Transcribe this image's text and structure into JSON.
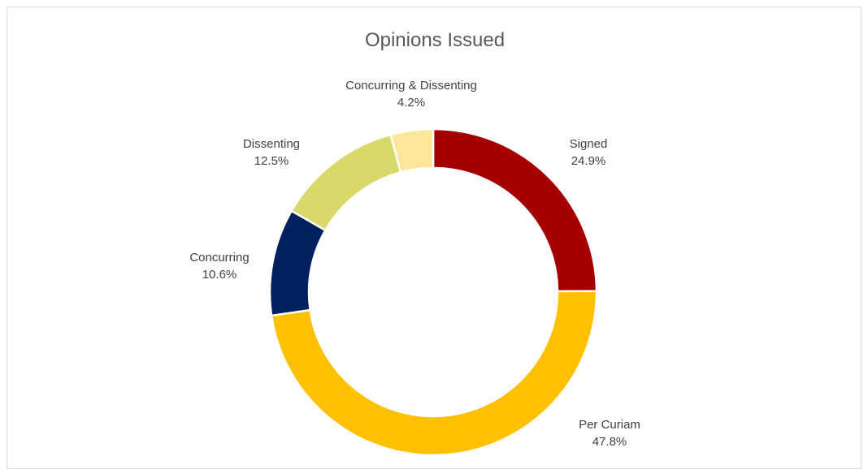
{
  "chart_data": {
    "type": "pie",
    "subtype": "donut",
    "title": "Opinions Issued",
    "slices": [
      {
        "label": "Signed",
        "value": 24.9,
        "value_label": "24.9%",
        "color": "#A50000"
      },
      {
        "label": "Per Curiam",
        "value": 47.8,
        "value_label": "47.8%",
        "color": "#FFC000"
      },
      {
        "label": "Concurring",
        "value": 10.6,
        "value_label": "10.6%",
        "color": "#002060"
      },
      {
        "label": "Dissenting",
        "value": 12.5,
        "value_label": "12.5%",
        "color": "#D9D96B"
      },
      {
        "label": "Concurring & Dissenting",
        "value": 4.2,
        "value_label": "4.2%",
        "color": "#FFE699"
      }
    ],
    "legend": "none"
  }
}
